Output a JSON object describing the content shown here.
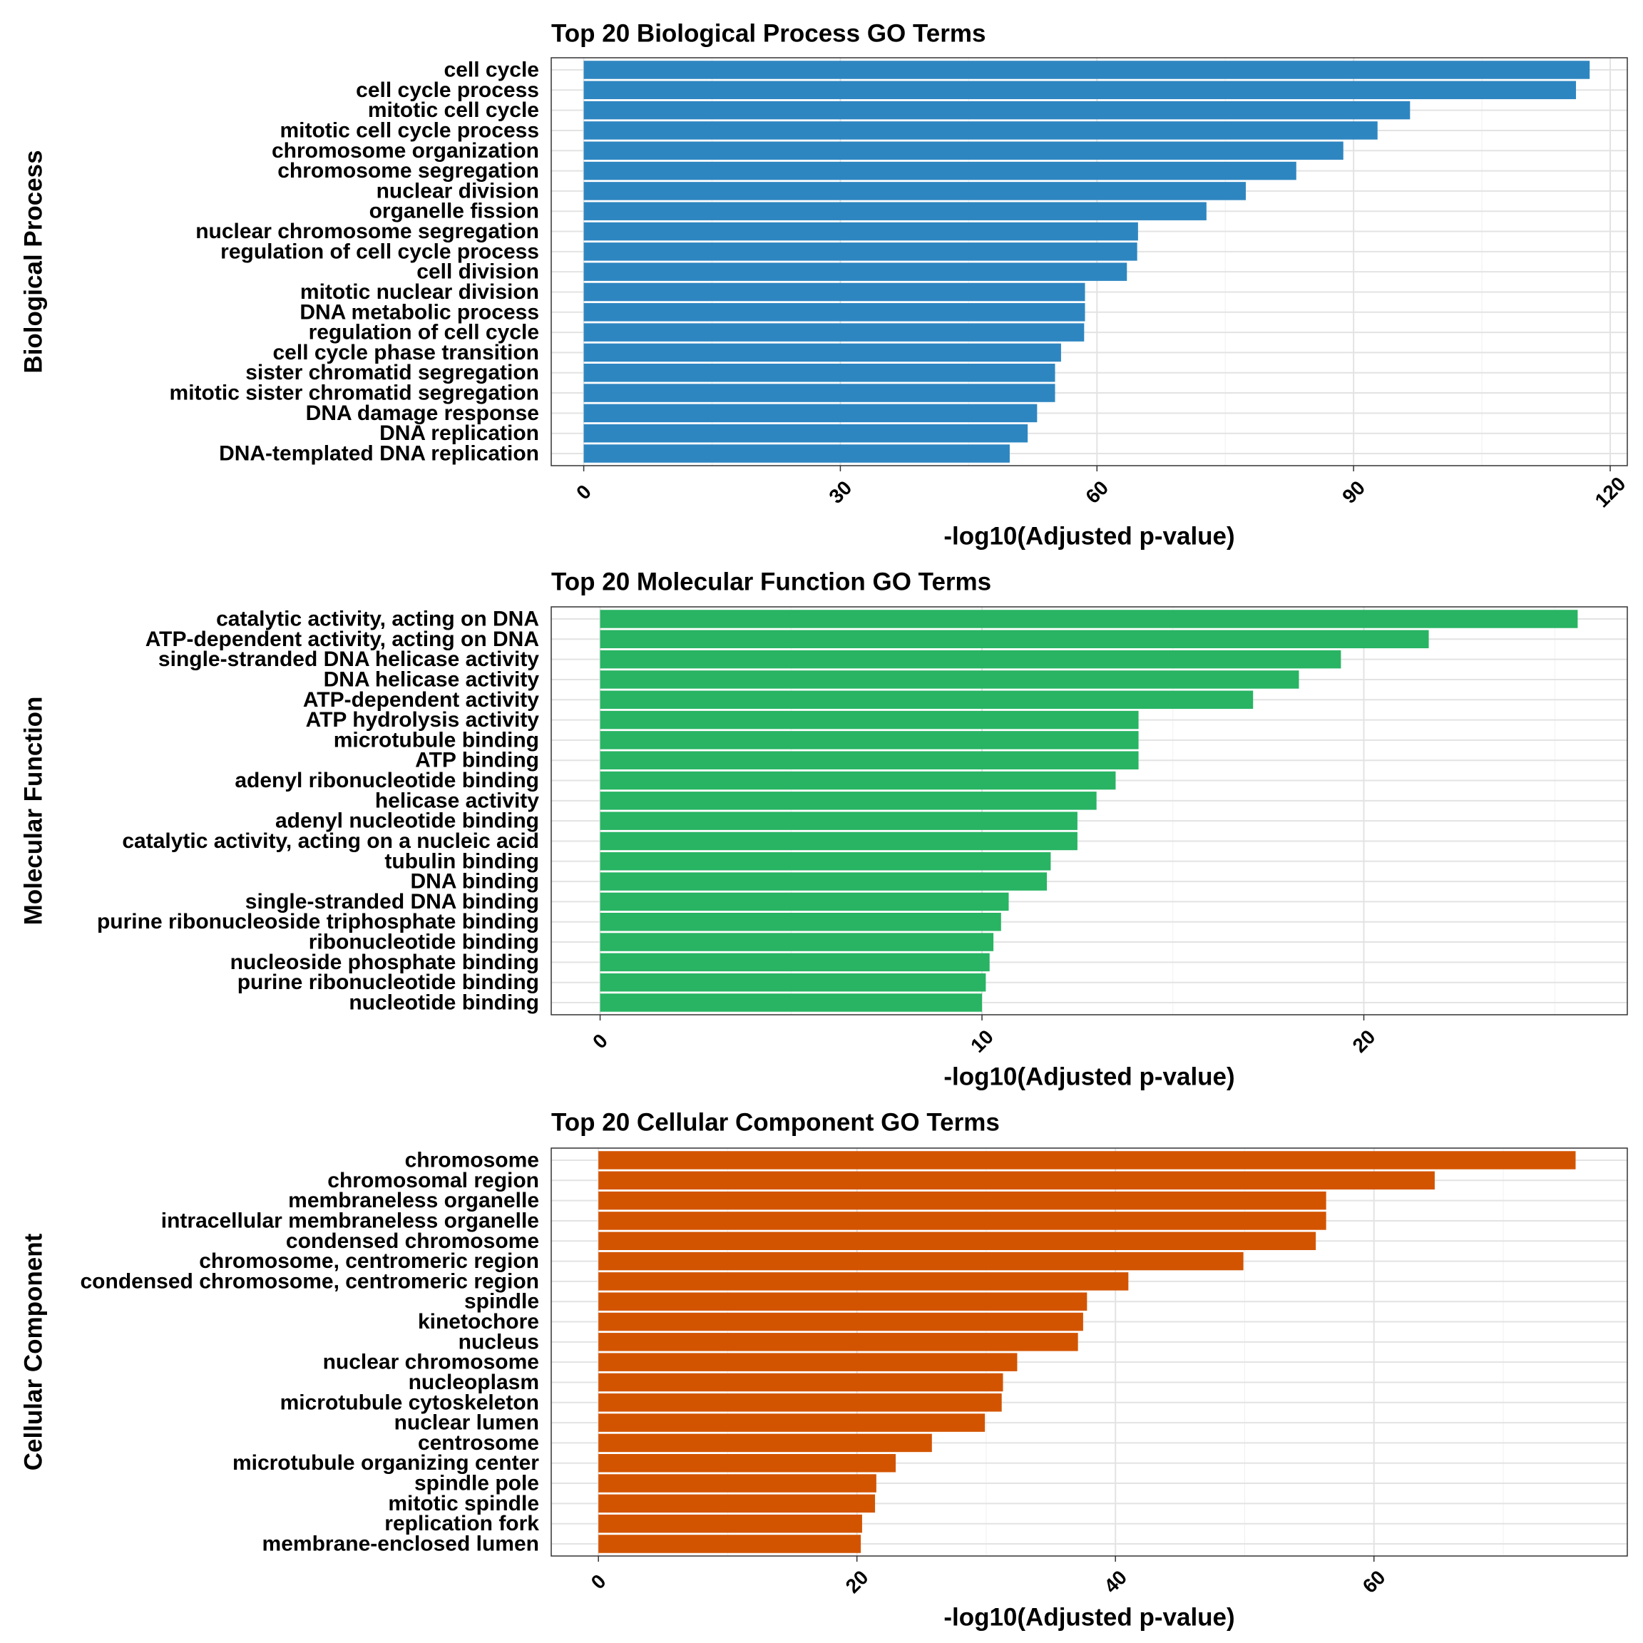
{
  "chart_data": [
    {
      "type": "bar",
      "orientation": "horizontal",
      "title": "Top 20 Biological Process GO Terms",
      "xlabel": "-log10(Adjusted p-value)",
      "ylabel": "Biological Process",
      "color": "#2E86C1",
      "xlim": [
        -3.8,
        122
      ],
      "xticks": [
        0,
        30,
        60,
        90,
        120
      ],
      "xtick_labels": [
        "0",
        "30",
        "60",
        "90",
        "120"
      ],
      "grid": true,
      "categories": [
        "cell cycle",
        "cell cycle process",
        "mitotic cell cycle",
        "mitotic cell cycle process",
        "chromosome organization",
        "chromosome segregation",
        "nuclear division",
        "organelle fission",
        "nuclear chromosome segregation",
        "regulation of cell cycle process",
        "cell division",
        "mitotic nuclear division",
        "DNA metabolic process",
        "regulation of cell cycle",
        "cell cycle phase transition",
        "sister chromatid segregation",
        "mitotic sister chromatid segregation",
        "DNA damage response",
        "DNA replication",
        "DNA-templated DNA replication"
      ],
      "values": [
        117.6,
        116.0,
        96.6,
        92.8,
        88.8,
        83.3,
        77.4,
        72.8,
        64.8,
        64.7,
        63.5,
        58.6,
        58.6,
        58.5,
        55.8,
        55.1,
        55.1,
        53.0,
        51.9,
        49.8
      ]
    },
    {
      "type": "bar",
      "orientation": "horizontal",
      "title": "Top 20 Molecular Function GO Terms",
      "xlabel": "-log10(Adjusted p-value)",
      "ylabel": "Molecular Function",
      "color": "#28B463",
      "xlim": [
        -1.28,
        26.9
      ],
      "xticks": [
        0,
        10,
        20
      ],
      "xtick_labels": [
        "0",
        "10",
        "20"
      ],
      "grid": true,
      "categories": [
        "catalytic activity, acting on DNA",
        "ATP-dependent activity, acting on DNA",
        "single-stranded DNA helicase activity",
        "DNA helicase activity",
        "ATP-dependent activity",
        "ATP hydrolysis activity",
        "microtubule binding",
        "ATP binding",
        "adenyl ribonucleotide binding",
        "helicase activity",
        "adenyl nucleotide binding",
        "catalytic activity, acting on a nucleic acid",
        "tubulin binding",
        "DNA binding",
        "single-stranded DNA binding",
        "purine ribonucleoside triphosphate binding",
        "ribonucleotide binding",
        "nucleoside phosphate binding",
        "purine ribonucleotide binding",
        "nucleotide binding"
      ],
      "values": [
        25.6,
        21.7,
        19.4,
        18.3,
        17.1,
        14.1,
        14.1,
        14.1,
        13.5,
        13.0,
        12.5,
        12.5,
        11.8,
        11.7,
        10.7,
        10.5,
        10.3,
        10.2,
        10.1,
        10.0
      ]
    },
    {
      "type": "bar",
      "orientation": "horizontal",
      "title": "Top 20 Cellular Component GO Terms",
      "xlabel": "-log10(Adjusted p-value)",
      "ylabel": "Cellular Component",
      "color": "#D35400",
      "xlim": [
        -3.65,
        79.6
      ],
      "xticks": [
        0,
        20,
        40,
        60
      ],
      "xtick_labels": [
        "0",
        "20",
        "40",
        "60"
      ],
      "grid": true,
      "categories": [
        "chromosome",
        "chromosomal region",
        "membraneless organelle",
        "intracellular membraneless organelle",
        "condensed chromosome",
        "chromosome, centromeric region",
        "condensed chromosome, centromeric region",
        "spindle",
        "kinetochore",
        "nucleus",
        "nuclear chromosome",
        "nucleoplasm",
        "microtubule cytoskeleton",
        "nuclear lumen",
        "centrosome",
        "microtubule organizing center",
        "spindle pole",
        "mitotic spindle",
        "replication fork",
        "membrane-enclosed lumen"
      ],
      "values": [
        75.6,
        64.7,
        56.3,
        56.3,
        55.5,
        49.9,
        41.0,
        37.8,
        37.5,
        37.1,
        32.4,
        31.3,
        31.2,
        29.9,
        25.8,
        23.0,
        21.5,
        21.4,
        20.4,
        20.3
      ]
    }
  ]
}
